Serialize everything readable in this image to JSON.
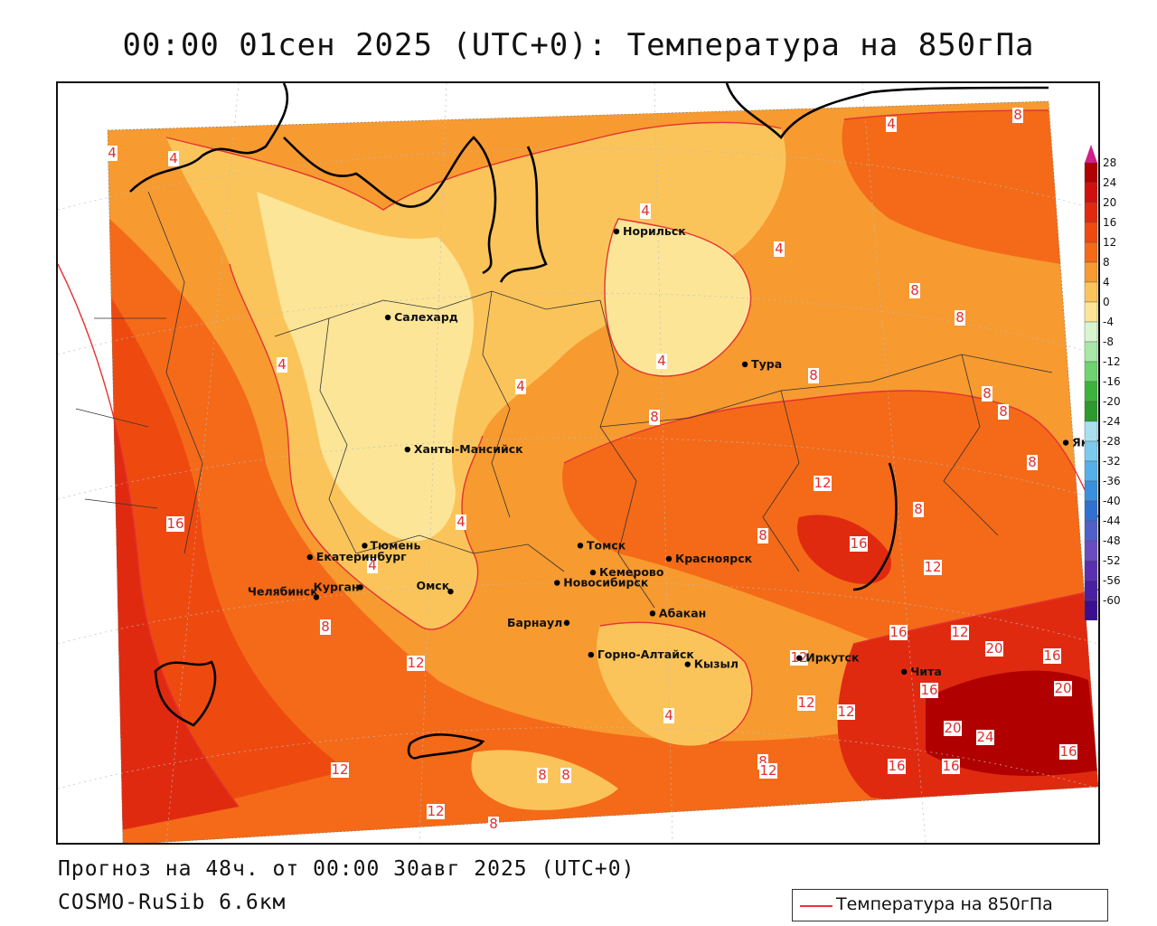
{
  "title": "00:00 01сен 2025 (UTC+0): Температура на 850гПа",
  "footer": {
    "forecast": "Прогноз на 48ч. от 00:00 30авг 2025 (UTC+0)",
    "model": "COSMO-RuSib 6.6км"
  },
  "legend": {
    "label": "Температура на 850гПа",
    "color": "#e33333"
  },
  "colorbar": {
    "labels": [
      "28",
      "24",
      "20",
      "16",
      "12",
      "8",
      "4",
      "0",
      "-4",
      "-8",
      "-12",
      "-16",
      "-20",
      "-24",
      "-28",
      "-32",
      "-36",
      "-40",
      "-44",
      "-48",
      "-52",
      "-56",
      "-60"
    ],
    "colors": [
      "#b00000",
      "#d01010",
      "#e02a10",
      "#ee4a10",
      "#f46a18",
      "#f79a30",
      "#fbc45a",
      "#fde598",
      "#d8f5d0",
      "#a8e8a8",
      "#6fd46f",
      "#3cb43c",
      "#2d9a2d",
      "#a8e0f0",
      "#7ccbee",
      "#55b0ea",
      "#3990de",
      "#3070d0",
      "#5060c8",
      "#6a4cc0",
      "#5a30b0",
      "#4a20a0",
      "#3a1090"
    ],
    "top_arrow_color": "#d0208a",
    "bottom_arrow_color": "#9a30d0"
  },
  "cities": [
    {
      "name": "Норильск",
      "lon": 88.2,
      "lat": 69.35
    },
    {
      "name": "Якутск",
      "lon": 129.7,
      "lat": 62.03
    },
    {
      "name": "Салехард",
      "lon": 66.6,
      "lat": 66.53
    },
    {
      "name": "Тура",
      "lon": 100.2,
      "lat": 64.27
    },
    {
      "name": "Ханты-Мансийск",
      "lon": 69.0,
      "lat": 61.0
    },
    {
      "name": "Екатеринбург",
      "lon": 60.6,
      "lat": 56.84
    },
    {
      "name": "Тюмень",
      "lon": 65.5,
      "lat": 57.15
    },
    {
      "name": "Челябинск",
      "lon": 61.4,
      "lat": 55.16
    },
    {
      "name": "Курган",
      "lon": 65.3,
      "lat": 55.44
    },
    {
      "name": "Омск",
      "lon": 73.4,
      "lat": 54.99
    },
    {
      "name": "Новосибирск",
      "lon": 82.9,
      "lat": 55.03
    },
    {
      "name": "Томск",
      "lon": 84.95,
      "lat": 56.5
    },
    {
      "name": "Кемерово",
      "lon": 86.1,
      "lat": 55.35
    },
    {
      "name": "Красноярск",
      "lon": 92.9,
      "lat": 56.0
    },
    {
      "name": "Барнаул",
      "lon": 83.8,
      "lat": 53.35
    },
    {
      "name": "Абакан",
      "lon": 91.4,
      "lat": 53.7
    },
    {
      "name": "Горно-Алтайск",
      "lon": 85.96,
      "lat": 51.96
    },
    {
      "name": "Кызыл",
      "lon": 94.45,
      "lat": 51.7
    },
    {
      "name": "Иркутск",
      "lon": 104.3,
      "lat": 52.29
    },
    {
      "name": "Чита",
      "lon": 113.5,
      "lat": 52.03
    }
  ],
  "isotherm_labels": [
    "4",
    "4",
    "4",
    "8",
    "8",
    "4",
    "4",
    "4",
    "8",
    "4",
    "8",
    "8",
    "8",
    "8",
    "4",
    "4",
    "8",
    "16",
    "12",
    "8",
    "12",
    "16",
    "8",
    "12",
    "12",
    "16",
    "12",
    "20",
    "16",
    "12",
    "20",
    "16",
    "12",
    "16",
    "20",
    "24",
    "8",
    "12",
    "16",
    "16",
    "12",
    "8",
    "8",
    "12",
    "8",
    "4",
    "4",
    "8"
  ],
  "colors": {
    "frame": "#111111",
    "coast": "#000000",
    "border": "#333333",
    "isotherm": "#e33333"
  }
}
